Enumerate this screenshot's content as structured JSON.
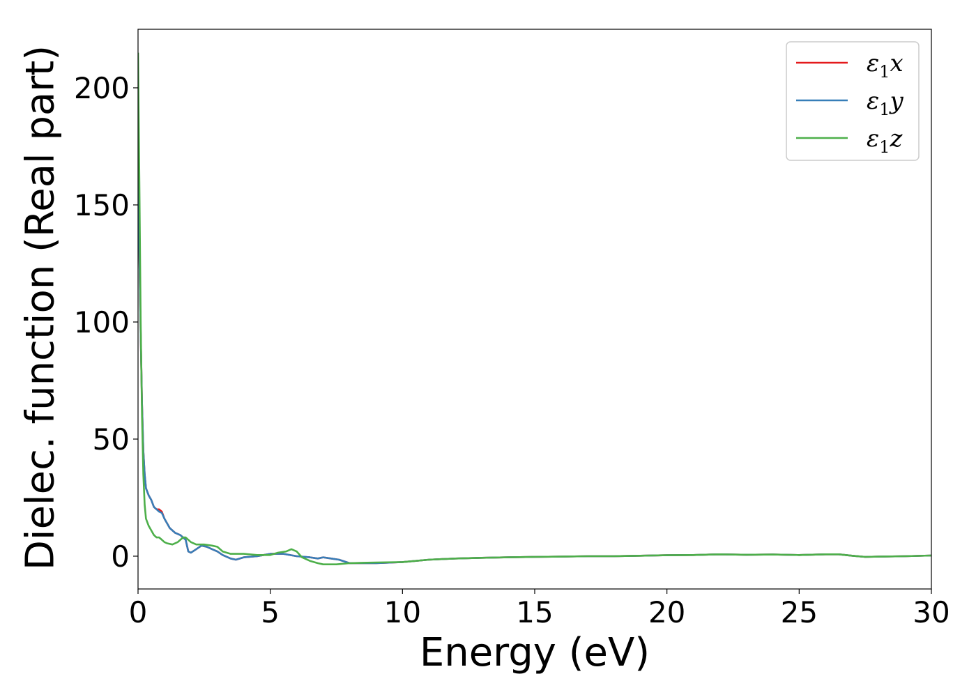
{
  "chart_data": {
    "type": "line",
    "title": "",
    "xlabel": "Energy (eV)",
    "ylabel": "Dielec. function (Real part)",
    "xlim": [
      0,
      30
    ],
    "ylim": [
      -14,
      225
    ],
    "xticks": [
      "0",
      "5",
      "10",
      "15",
      "20",
      "25",
      "30"
    ],
    "yticks": [
      "0",
      "50",
      "100",
      "150",
      "200"
    ],
    "grid": false,
    "legend_position": "top-right",
    "series": [
      {
        "name": "ε1x",
        "legend_base": "ε",
        "legend_sub": "1",
        "legend_suffix": "x",
        "color": "#e41a1c",
        "x": [
          0,
          0.05,
          0.1,
          0.15,
          0.2,
          0.25,
          0.3,
          0.4,
          0.5,
          0.6,
          0.7,
          0.8,
          0.9,
          1.0,
          1.1,
          1.2,
          1.4,
          1.6,
          1.8,
          1.9,
          2.0,
          2.2,
          2.4,
          2.6,
          2.8,
          3.0,
          3.2,
          3.5,
          3.7,
          4.0,
          4.5,
          5.0,
          5.5,
          6.0,
          6.5,
          6.8,
          7.0,
          7.3,
          7.6,
          8.0,
          8.5,
          9.0,
          10.0,
          11.0,
          12.0,
          13.0,
          14.0,
          15.0,
          16.0,
          17.0,
          18.0,
          19.0,
          20.0,
          21.0,
          22.0,
          23.0,
          24.0,
          25.0,
          26.0,
          26.5,
          27.0,
          27.5,
          28.0,
          29.0,
          30.0
        ],
        "y": [
          165,
          130,
          95,
          65,
          45,
          35,
          29,
          26,
          24,
          21,
          20,
          20,
          19,
          16,
          14,
          12,
          10,
          9,
          7,
          2,
          1.5,
          3,
          4.5,
          4,
          3,
          2,
          0.5,
          -1,
          -1.5,
          -0.5,
          0,
          1,
          1,
          0,
          -0.5,
          -1,
          -0.5,
          -1,
          -1.5,
          -3,
          -3,
          -3,
          -2.5,
          -1.5,
          -1,
          -0.7,
          -0.5,
          -0.3,
          -0.2,
          0,
          0,
          0.2,
          0.4,
          0.5,
          0.8,
          0.6,
          0.7,
          0.5,
          0.8,
          0.8,
          0.2,
          -0.3,
          -0.2,
          0,
          0.3
        ]
      },
      {
        "name": "ε1y",
        "legend_base": "ε",
        "legend_sub": "1",
        "legend_suffix": "y",
        "color": "#377eb8",
        "x": [
          0,
          0.05,
          0.1,
          0.15,
          0.2,
          0.25,
          0.3,
          0.4,
          0.5,
          0.6,
          0.7,
          0.8,
          0.9,
          1.0,
          1.1,
          1.2,
          1.4,
          1.6,
          1.8,
          1.9,
          2.0,
          2.2,
          2.4,
          2.6,
          2.8,
          3.0,
          3.2,
          3.5,
          3.7,
          4.0,
          4.5,
          5.0,
          5.5,
          6.0,
          6.5,
          6.8,
          7.0,
          7.3,
          7.6,
          8.0,
          8.5,
          9.0,
          10.0,
          11.0,
          12.0,
          13.0,
          14.0,
          15.0,
          16.0,
          17.0,
          18.0,
          19.0,
          20.0,
          21.0,
          22.0,
          23.0,
          24.0,
          25.0,
          26.0,
          26.5,
          27.0,
          27.5,
          28.0,
          29.0,
          30.0
        ],
        "y": [
          165,
          130,
          95,
          65,
          45,
          35,
          29,
          26,
          24,
          21,
          20,
          19,
          18.5,
          16,
          14,
          12,
          10,
          9,
          7,
          2,
          1.5,
          3,
          4.5,
          4,
          3,
          2,
          0.5,
          -1,
          -1.5,
          -0.5,
          0,
          1,
          1,
          0,
          -0.5,
          -1,
          -0.5,
          -1,
          -1.5,
          -3,
          -3,
          -3,
          -2.5,
          -1.5,
          -1,
          -0.7,
          -0.5,
          -0.3,
          -0.2,
          0,
          0,
          0.2,
          0.4,
          0.5,
          0.8,
          0.6,
          0.7,
          0.5,
          0.8,
          0.8,
          0.2,
          -0.3,
          -0.2,
          0,
          0.3
        ]
      },
      {
        "name": "ε1z",
        "legend_base": "ε",
        "legend_sub": "1",
        "legend_suffix": "z",
        "color": "#4daf4a",
        "x": [
          0,
          0.05,
          0.1,
          0.15,
          0.2,
          0.25,
          0.3,
          0.4,
          0.5,
          0.6,
          0.7,
          0.8,
          0.9,
          1.0,
          1.1,
          1.3,
          1.5,
          1.7,
          1.8,
          2.0,
          2.2,
          2.5,
          2.8,
          3.0,
          3.2,
          3.5,
          4.0,
          4.5,
          5.0,
          5.3,
          5.6,
          5.8,
          6.0,
          6.2,
          6.5,
          6.8,
          7.0,
          7.5,
          8.0,
          8.5,
          9.0,
          10.0,
          11.0,
          12.0,
          13.0,
          14.0,
          15.0,
          16.0,
          17.0,
          18.0,
          19.0,
          20.0,
          21.0,
          22.0,
          23.0,
          24.0,
          25.0,
          26.0,
          26.5,
          27.0,
          27.5,
          28.0,
          29.0,
          30.0
        ],
        "y": [
          215,
          160,
          100,
          60,
          35,
          22,
          16,
          13,
          11,
          9,
          8,
          8,
          7,
          6,
          5.5,
          5,
          6,
          8,
          8,
          6,
          5,
          5,
          4.5,
          4,
          2,
          1,
          1,
          0.5,
          0.5,
          1.5,
          2,
          3,
          2,
          -0.5,
          -2,
          -3,
          -3.5,
          -3.5,
          -3,
          -2.8,
          -2.7,
          -2.5,
          -1.5,
          -1,
          -0.7,
          -0.5,
          -0.3,
          -0.2,
          0,
          0,
          0.2,
          0.4,
          0.5,
          0.8,
          0.6,
          0.7,
          0.5,
          0.8,
          0.8,
          0.2,
          -0.3,
          -0.2,
          0,
          0.3
        ]
      }
    ]
  }
}
